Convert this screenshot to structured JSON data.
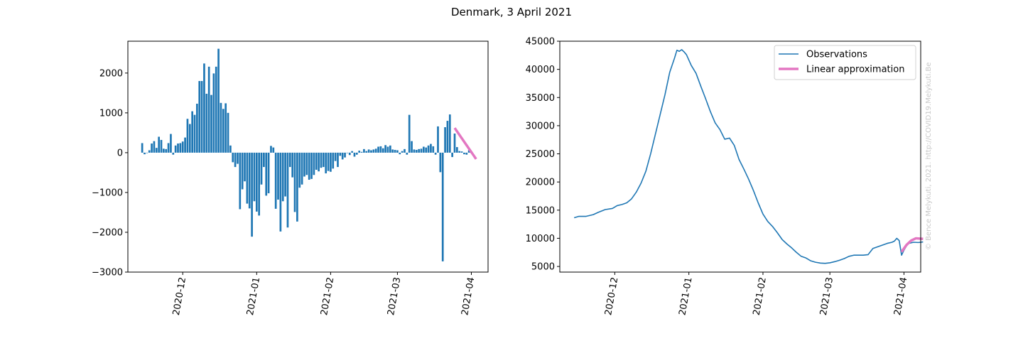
{
  "title": "Denmark, 3 April 2021",
  "watermark": "© Bence Melykuti, 2021. http://COVID19.Melykuti.Be",
  "colors": {
    "observations": "#1f77b4",
    "linear": "#e377c2"
  },
  "chart_data": [
    {
      "type": "bar",
      "xlim": [
        "2020-11-08",
        "2021-04-08"
      ],
      "ylim": [
        -3000,
        2800
      ],
      "x_ticks": [
        "2020-12",
        "2021-01",
        "2021-02",
        "2021-03",
        "2021-04"
      ],
      "y_ticks": [
        -3000,
        -2000,
        -1000,
        0,
        1000,
        2000
      ],
      "y_tick_labels": [
        "−3000",
        "−2000",
        "−1000",
        "0",
        "1000",
        "2000"
      ],
      "start_date": "2020-11-14",
      "values": [
        240,
        -40,
        0,
        60,
        230,
        290,
        120,
        400,
        320,
        100,
        90,
        240,
        470,
        -50,
        180,
        230,
        240,
        280,
        380,
        850,
        720,
        1040,
        950,
        1230,
        1800,
        1800,
        2240,
        1480,
        2160,
        1450,
        1990,
        2160,
        2610,
        1250,
        1100,
        1240,
        1000,
        180,
        -240,
        -360,
        -280,
        -1420,
        -920,
        -720,
        -1280,
        -1400,
        -2110,
        -1220,
        -1480,
        -1580,
        -800,
        -360,
        -1080,
        -1020,
        170,
        130,
        -1410,
        -1180,
        -1980,
        -1220,
        -1100,
        -1880,
        -360,
        -620,
        -1490,
        -1730,
        -880,
        -800,
        -600,
        -560,
        -680,
        -660,
        -560,
        -430,
        -470,
        -380,
        -360,
        -520,
        -460,
        -480,
        -400,
        -210,
        -360,
        -80,
        -170,
        -120,
        0,
        -60,
        40,
        -100,
        -50,
        50,
        20,
        90,
        40,
        80,
        60,
        80,
        100,
        150,
        160,
        110,
        190,
        150,
        180,
        80,
        70,
        60,
        -40,
        40,
        90,
        -50,
        950,
        290,
        80,
        70,
        90,
        100,
        150,
        130,
        180,
        220,
        160,
        -50,
        660,
        -490,
        -2730,
        640,
        800,
        960,
        -110,
        480,
        140,
        40,
        30,
        -40,
        -50,
        60
      ],
      "series": [
        {
          "name": "",
          "kind": "line",
          "x": [
            "2021-03-25",
            "2021-04-03"
          ],
          "y": [
            620,
            -160
          ]
        }
      ]
    },
    {
      "type": "line",
      "xlim": [
        "2020-11-08",
        "2021-04-08"
      ],
      "ylim": [
        4000,
        45000
      ],
      "x_ticks": [
        "2020-12",
        "2021-01",
        "2021-02",
        "2021-03",
        "2021-04"
      ],
      "y_ticks": [
        5000,
        10000,
        15000,
        20000,
        25000,
        30000,
        35000,
        40000,
        45000
      ],
      "legend": {
        "position": "upper right"
      },
      "series": [
        {
          "name": "Observations",
          "points": [
            [
              "2020-11-14",
              13650
            ],
            [
              "2020-11-16",
              13900
            ],
            [
              "2020-11-19",
              13900
            ],
            [
              "2020-11-22",
              14200
            ],
            [
              "2020-11-24",
              14600
            ],
            [
              "2020-11-27",
              15100
            ],
            [
              "2020-11-30",
              15300
            ],
            [
              "2020-12-02",
              15800
            ],
            [
              "2020-12-04",
              16000
            ],
            [
              "2020-12-06",
              16300
            ],
            [
              "2020-12-08",
              17000
            ],
            [
              "2020-12-10",
              18200
            ],
            [
              "2020-12-12",
              19800
            ],
            [
              "2020-12-14",
              21900
            ],
            [
              "2020-12-16",
              25000
            ],
            [
              "2020-12-18",
              28500
            ],
            [
              "2020-12-20",
              32000
            ],
            [
              "2020-12-22",
              35500
            ],
            [
              "2020-12-24",
              39500
            ],
            [
              "2020-12-26",
              42000
            ],
            [
              "2020-12-27",
              43400
            ],
            [
              "2020-12-28",
              43200
            ],
            [
              "2020-12-29",
              43500
            ],
            [
              "2020-12-30",
              43100
            ],
            [
              "2020-12-31",
              42600
            ],
            [
              "2021-01-02",
              40700
            ],
            [
              "2021-01-04",
              39300
            ],
            [
              "2021-01-06",
              37000
            ],
            [
              "2021-01-08",
              34800
            ],
            [
              "2021-01-10",
              32500
            ],
            [
              "2021-01-12",
              30500
            ],
            [
              "2021-01-14",
              29300
            ],
            [
              "2021-01-16",
              27600
            ],
            [
              "2021-01-18",
              27800
            ],
            [
              "2021-01-20",
              26500
            ],
            [
              "2021-01-22",
              24000
            ],
            [
              "2021-01-24",
              22300
            ],
            [
              "2021-01-26",
              20500
            ],
            [
              "2021-01-28",
              18500
            ],
            [
              "2021-01-30",
              16300
            ],
            [
              "2021-02-01",
              14300
            ],
            [
              "2021-02-03",
              13000
            ],
            [
              "2021-02-05",
              12100
            ],
            [
              "2021-02-07",
              11000
            ],
            [
              "2021-02-09",
              9800
            ],
            [
              "2021-02-11",
              9000
            ],
            [
              "2021-02-13",
              8300
            ],
            [
              "2021-02-15",
              7500
            ],
            [
              "2021-02-17",
              6800
            ],
            [
              "2021-02-19",
              6500
            ],
            [
              "2021-02-21",
              6000
            ],
            [
              "2021-02-23",
              5750
            ],
            [
              "2021-02-25",
              5600
            ],
            [
              "2021-02-27",
              5550
            ],
            [
              "2021-03-01",
              5650
            ],
            [
              "2021-03-03",
              5850
            ],
            [
              "2021-03-05",
              6100
            ],
            [
              "2021-03-07",
              6400
            ],
            [
              "2021-03-09",
              6800
            ],
            [
              "2021-03-11",
              7000
            ],
            [
              "2021-03-13",
              7000
            ],
            [
              "2021-03-15",
              7000
            ],
            [
              "2021-03-17",
              7100
            ],
            [
              "2021-03-19",
              8200
            ],
            [
              "2021-03-21",
              8500
            ],
            [
              "2021-03-23",
              8800
            ],
            [
              "2021-03-25",
              9100
            ],
            [
              "2021-03-27",
              9300
            ],
            [
              "2021-03-28",
              9500
            ],
            [
              "2021-03-29",
              10000
            ],
            [
              "2021-03-30",
              9600
            ],
            [
              "2021-03-31",
              7000
            ],
            [
              "2021-04-01",
              7900
            ],
            [
              "2021-04-02",
              8600
            ],
            [
              "2021-04-03",
              9100
            ],
            [
              "2021-04-05",
              9300
            ],
            [
              "2021-04-07",
              9250
            ],
            [
              "2021-04-09",
              9350
            ]
          ]
        },
        {
          "name": "Linear approximation",
          "points": [
            [
              "2021-03-31",
              7600
            ],
            [
              "2021-04-02",
              8800
            ],
            [
              "2021-04-04",
              9600
            ],
            [
              "2021-04-06",
              10000
            ],
            [
              "2021-04-09",
              9900
            ]
          ]
        }
      ]
    }
  ]
}
